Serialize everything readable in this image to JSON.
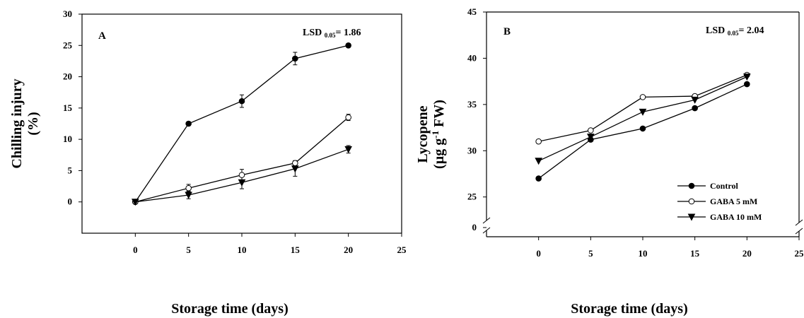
{
  "chart_data": [
    {
      "type": "line",
      "panel_label": "A",
      "annotation": {
        "lsd_main": "LSD ",
        "lsd_sub": "0.05",
        "lsd_value": "= 1.86"
      },
      "ylabel_line1": "Chilling injury",
      "ylabel_line2": "(%)",
      "xlabel": "Storage time (days)",
      "xlim": [
        -5,
        25
      ],
      "ylim": [
        -5,
        30
      ],
      "xticks": [
        "0",
        "5",
        "10",
        "15",
        "20",
        "25"
      ],
      "yticks": [
        "0",
        "5",
        "10",
        "15",
        "20",
        "25",
        "30"
      ],
      "x": [
        0,
        5,
        10,
        15,
        20
      ],
      "series": [
        {
          "name": "Control",
          "marker": "filled-circle",
          "values": [
            0,
            12.5,
            16.1,
            22.9,
            25
          ],
          "errors": [
            0,
            0.3,
            1.0,
            1.0,
            0.3
          ]
        },
        {
          "name": "GABA 5 mM",
          "marker": "open-circle",
          "values": [
            0,
            2.2,
            4.3,
            6.2,
            13.5
          ],
          "errors": [
            0,
            0.6,
            0.9,
            0.4,
            0.5
          ]
        },
        {
          "name": "GABA 10 mM",
          "marker": "filled-triangle",
          "values": [
            0,
            1.1,
            3.1,
            5.3,
            8.4
          ],
          "errors": [
            0,
            0.6,
            1.0,
            1.2,
            0.6
          ]
        }
      ]
    },
    {
      "type": "line",
      "panel_label": "B",
      "annotation": {
        "lsd_main": "LSD ",
        "lsd_sub": "0.05",
        "lsd_value": "= 2.04"
      },
      "ylabel_line1": "Lycopene",
      "ylabel_line2_main": "(µg g",
      "ylabel_line2_sup": "-1",
      "ylabel_line2_tail": " FW)",
      "xlabel": "Storage time (days)",
      "xlim": [
        -5,
        25
      ],
      "ylim": [
        20.7,
        45
      ],
      "axis_break": true,
      "xticks": [
        "0",
        "5",
        "10",
        "15",
        "20",
        "25"
      ],
      "yticks": [
        "0",
        "25",
        "30",
        "35",
        "40",
        "45"
      ],
      "x": [
        0,
        5,
        10,
        15,
        20
      ],
      "series": [
        {
          "name": "Control",
          "marker": "filled-circle",
          "values": [
            27.0,
            31.2,
            32.4,
            34.6,
            37.2
          ]
        },
        {
          "name": "GABA 5 mM",
          "marker": "open-circle",
          "values": [
            31.0,
            32.2,
            35.8,
            35.9,
            38.2
          ]
        },
        {
          "name": "GABA 10 mM",
          "marker": "filled-triangle",
          "values": [
            28.9,
            31.5,
            34.2,
            35.5,
            38.0
          ]
        }
      ],
      "legend": {
        "position": "bottom-right",
        "entries": [
          "Control",
          "GABA 5 mM",
          "GABA 10 mM"
        ]
      }
    }
  ]
}
